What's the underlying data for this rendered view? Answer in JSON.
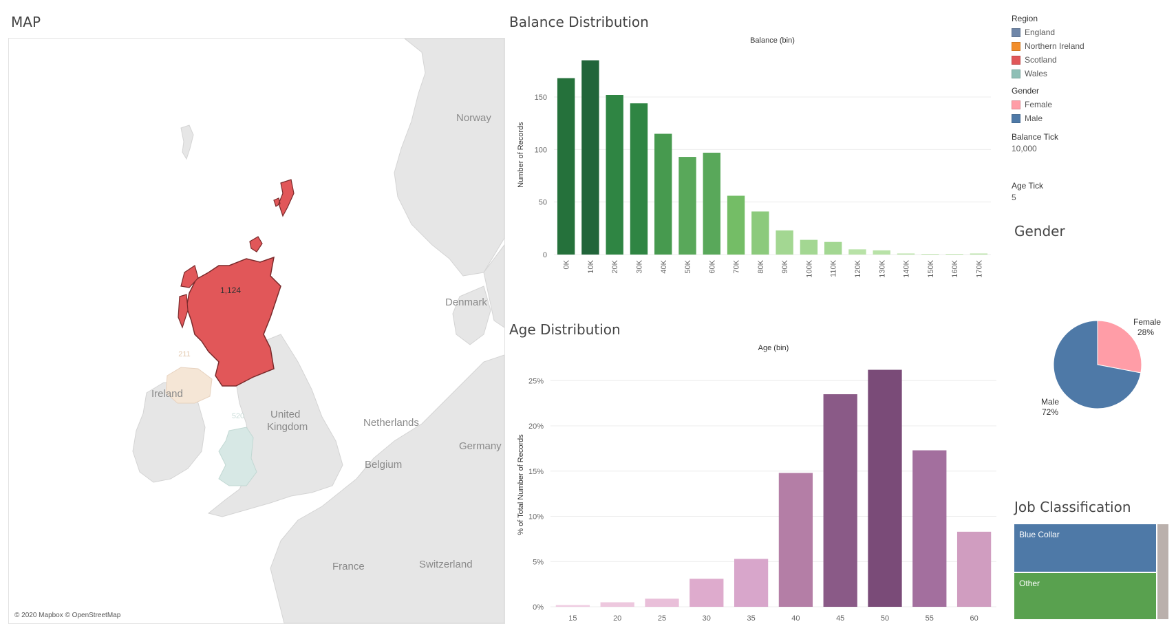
{
  "map": {
    "title": "MAP",
    "attribution": "© 2020 Mapbox © OpenStreetMap",
    "place_labels": [
      "Norway",
      "Denmark",
      "Ireland",
      "United",
      "Kingdom",
      "Netherlands",
      "Germany",
      "Belgium",
      "France",
      "Switzerland"
    ],
    "region_values": {
      "scotland": "1,124",
      "northern_ireland": "211",
      "wales": "520"
    },
    "colors": {
      "scotland": "#e15759",
      "northern_ireland": "#f5e6d6",
      "wales": "#d7e8e5",
      "land": "#e6e6e6",
      "sea": "#ffffff"
    }
  },
  "balance": {
    "title": "Balance Distribution",
    "chart_data": {
      "type": "bar",
      "title": "Balance (bin)",
      "xlabel": "",
      "ylabel": "Number of Records",
      "categories": [
        "0K",
        "10K",
        "20K",
        "30K",
        "40K",
        "50K",
        "60K",
        "70K",
        "80K",
        "90K",
        "100K",
        "110K",
        "120K",
        "130K",
        "140K",
        "150K",
        "160K",
        "170K"
      ],
      "values": [
        168,
        185,
        152,
        144,
        115,
        93,
        97,
        56,
        41,
        23,
        14,
        12,
        5,
        4,
        1,
        0,
        0,
        1
      ],
      "ylim": [
        0,
        190
      ],
      "yticks": [
        0,
        50,
        100,
        150
      ],
      "colors": [
        "#25713b",
        "#21653a",
        "#2f8543",
        "#2f8543",
        "#479a4f",
        "#59a85a",
        "#59a85a",
        "#74bd66",
        "#8cca7c",
        "#a3d792",
        "#a3d792",
        "#a3d792",
        "#b8e2a7",
        "#b8e2a7",
        "#b8e2a7",
        "#b8e2a7",
        "#b8e2a7",
        "#b8e2a7"
      ],
      "grid": true
    }
  },
  "age": {
    "title": "Age Distribution",
    "chart_data": {
      "type": "bar",
      "title": "Age (bin)",
      "xlabel": "",
      "ylabel": "% of Total Number of Records",
      "categories": [
        "15",
        "20",
        "25",
        "30",
        "35",
        "40",
        "45",
        "50",
        "55",
        "60"
      ],
      "values": [
        0.2,
        0.5,
        0.9,
        3.1,
        5.3,
        14.8,
        23.5,
        26.2,
        17.3,
        8.3
      ],
      "ylim": [
        0,
        27
      ],
      "yticks": [
        0,
        5,
        10,
        15,
        20,
        25
      ],
      "tick_suffix": "%",
      "colors": [
        "#f0cfe3",
        "#edc8de",
        "#e9bfd9",
        "#deabcd",
        "#d8a6cb",
        "#b47ea6",
        "#8a5a87",
        "#7a4b78",
        "#a36f9e",
        "#d09dc0"
      ],
      "grid": true
    }
  },
  "legend": {
    "region_title": "Region",
    "regions": [
      {
        "label": "England",
        "color": "#6f86a8"
      },
      {
        "label": "Northern Ireland",
        "color": "#f28e2b"
      },
      {
        "label": "Scotland",
        "color": "#e15759"
      },
      {
        "label": "Wales",
        "color": "#8fbfb6"
      }
    ],
    "gender_title": "Gender",
    "genders": [
      {
        "label": "Female",
        "color": "#ff9da7"
      },
      {
        "label": "Male",
        "color": "#4e79a7"
      }
    ],
    "balance_tick_title": "Balance Tick",
    "balance_tick_value": "10,000",
    "age_tick_title": "Age Tick",
    "age_tick_value": "5"
  },
  "gender": {
    "title": "Gender",
    "chart_data": {
      "type": "pie",
      "categories": [
        "Female",
        "Male"
      ],
      "values": [
        28,
        72
      ],
      "labels": [
        "28%",
        "72%"
      ],
      "colors": [
        "#ff9da7",
        "#4e79a7"
      ]
    }
  },
  "job": {
    "title": "Job Classification",
    "chart_data": {
      "type": "treemap",
      "categories": [
        "Blue Collar",
        "Other"
      ],
      "colors": [
        "#4e79a7",
        "#59a14f",
        "#bab0ac"
      ]
    }
  }
}
